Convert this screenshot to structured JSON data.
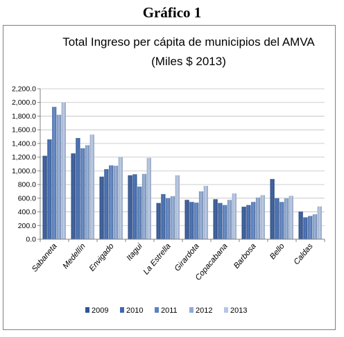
{
  "heading": "Gráfico 1",
  "chart_data": {
    "type": "bar",
    "title": "Total Ingreso per cápita de municipios del AMVA",
    "subtitle": "(Miles $ 2013)",
    "xlabel": "",
    "ylabel": "",
    "ylim": [
      0,
      2200
    ],
    "yticks": [
      "0.0",
      "200.0",
      "400.0",
      "600.0",
      "800.0",
      "1,000.0",
      "1,200.0",
      "1,400.0",
      "1,600.0",
      "1,800.0",
      "2,000.0",
      "2,200.0"
    ],
    "grid": true,
    "legend": "bottom",
    "categories": [
      "Sabaneta",
      "Medellín",
      "Envigado",
      "Itagui",
      "La Estrella",
      "Girardota",
      "Copacabana",
      "Barbosa",
      "Bello",
      "Caldas"
    ],
    "series": [
      {
        "name": "2009",
        "color": "#2f5597",
        "values": [
          1220,
          1255,
          915,
          935,
          530,
          575,
          585,
          475,
          880,
          405
        ]
      },
      {
        "name": "2010",
        "color": "#3d68b0",
        "values": [
          1460,
          1480,
          1025,
          950,
          660,
          545,
          530,
          500,
          600,
          320
        ]
      },
      {
        "name": "2011",
        "color": "#5a82c4",
        "values": [
          1935,
          1330,
          1080,
          770,
          600,
          535,
          500,
          545,
          545,
          340
        ]
      },
      {
        "name": "2012",
        "color": "#8eaad6",
        "values": [
          1820,
          1375,
          1075,
          955,
          630,
          700,
          575,
          610,
          600,
          365
        ]
      },
      {
        "name": "2013",
        "color": "#b4c7e7",
        "values": [
          2000,
          1530,
          1205,
          1190,
          935,
          780,
          670,
          645,
          635,
          480
        ]
      }
    ]
  }
}
